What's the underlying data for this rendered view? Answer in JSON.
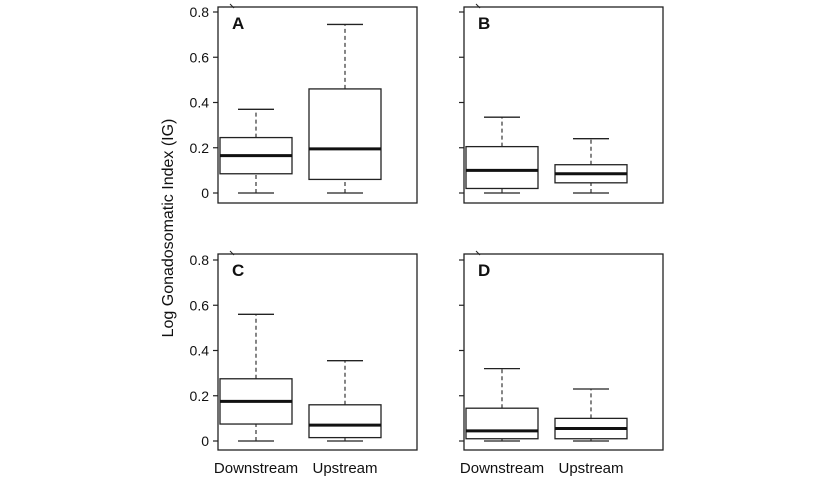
{
  "figure": {
    "y_axis_title": "Log Gonadosomatic Index (IG)"
  },
  "chart_data": [
    {
      "type": "boxplot",
      "panel": "A",
      "categories": [
        "Downstream",
        "Upstream"
      ],
      "ylim": [
        0,
        0.8
      ],
      "yticks": [
        "0",
        "0.2",
        "0.4",
        "0.6",
        "0.8"
      ],
      "boxes": [
        {
          "category": "Downstream",
          "min": 0.0,
          "q1": 0.085,
          "median": 0.165,
          "q3": 0.245,
          "max": 0.37
        },
        {
          "category": "Upstream",
          "min": 0.0,
          "q1": 0.06,
          "median": 0.195,
          "q3": 0.46,
          "max": 0.745
        }
      ]
    },
    {
      "type": "boxplot",
      "panel": "B",
      "categories": [
        "Downstream",
        "Upstream"
      ],
      "ylim": [
        0,
        0.8
      ],
      "yticks": [],
      "boxes": [
        {
          "category": "Downstream",
          "min": 0.0,
          "q1": 0.02,
          "median": 0.1,
          "q3": 0.205,
          "max": 0.335
        },
        {
          "category": "Upstream",
          "min": 0.0,
          "q1": 0.045,
          "median": 0.085,
          "q3": 0.125,
          "max": 0.24
        }
      ]
    },
    {
      "type": "boxplot",
      "panel": "C",
      "categories": [
        "Downstream",
        "Upstream"
      ],
      "ylim": [
        0,
        0.8
      ],
      "yticks": [
        "0",
        "0.2",
        "0.4",
        "0.6",
        "0.8"
      ],
      "xlabels": [
        "Downstream",
        "Upstream"
      ],
      "boxes": [
        {
          "category": "Downstream",
          "min": 0.0,
          "q1": 0.075,
          "median": 0.175,
          "q3": 0.275,
          "max": 0.56
        },
        {
          "category": "Upstream",
          "min": 0.0,
          "q1": 0.015,
          "median": 0.07,
          "q3": 0.16,
          "max": 0.355
        }
      ]
    },
    {
      "type": "boxplot",
      "panel": "D",
      "categories": [
        "Downstream",
        "Upstream"
      ],
      "ylim": [
        0,
        0.8
      ],
      "yticks": [],
      "xlabels": [
        "Downstream",
        "Upstream"
      ],
      "boxes": [
        {
          "category": "Downstream",
          "min": 0.0,
          "q1": 0.01,
          "median": 0.045,
          "q3": 0.145,
          "max": 0.32
        },
        {
          "category": "Upstream",
          "min": 0.0,
          "q1": 0.01,
          "median": 0.055,
          "q3": 0.1,
          "max": 0.23
        }
      ]
    }
  ]
}
